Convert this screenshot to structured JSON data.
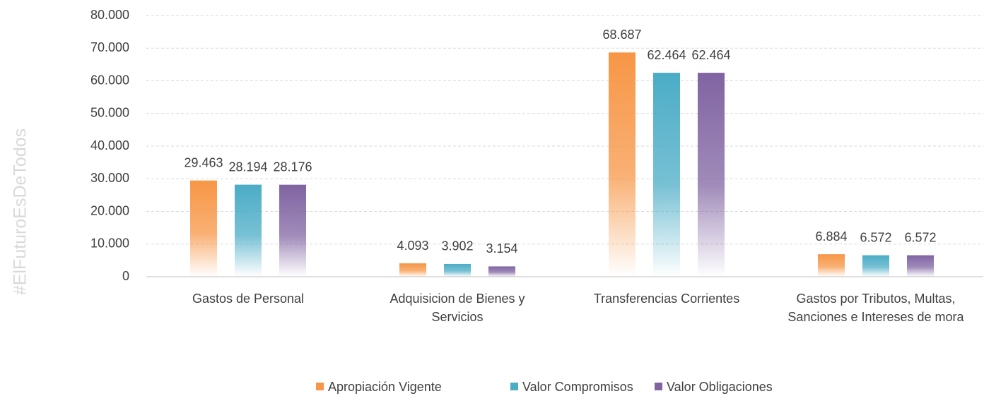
{
  "chart_data": {
    "type": "bar",
    "watermark": "#ElFuturoEsDeTodos",
    "categories": [
      "Gastos de Personal",
      "Adquisicion de Bienes y Servicios",
      "Transferencias Corrientes",
      "Gastos por Tributos, Multas, Sanciones e Intereses de mora"
    ],
    "series": [
      {
        "name": "Apropiación Vigente",
        "color": "#f79646",
        "values": [
          29463,
          4093,
          68687,
          6884
        ],
        "value_labels": [
          "29.463",
          "4.093",
          "68.687",
          "6.884"
        ]
      },
      {
        "name": "Valor Compromisos",
        "color": "#4bacc6",
        "values": [
          28194,
          3902,
          62464,
          6572
        ],
        "value_labels": [
          "28.194",
          "3.902",
          "62.464",
          "6.572"
        ]
      },
      {
        "name": "Valor Obligaciones",
        "color": "#8064a2",
        "values": [
          28176,
          3154,
          62464,
          6572
        ],
        "value_labels": [
          "28.176",
          "3.154",
          "62.464",
          "6.572"
        ]
      }
    ],
    "ylim": [
      0,
      80000
    ],
    "yticks": [
      {
        "value": 0,
        "label": "0"
      },
      {
        "value": 10000,
        "label": "10.000"
      },
      {
        "value": 20000,
        "label": "20.000"
      },
      {
        "value": 30000,
        "label": "30.000"
      },
      {
        "value": 40000,
        "label": "40.000"
      },
      {
        "value": 50000,
        "label": "50.000"
      },
      {
        "value": 60000,
        "label": "60.000"
      },
      {
        "value": 70000,
        "label": "70.000"
      },
      {
        "value": 80000,
        "label": "80.000"
      }
    ],
    "grid": true,
    "legend": "bottom"
  }
}
